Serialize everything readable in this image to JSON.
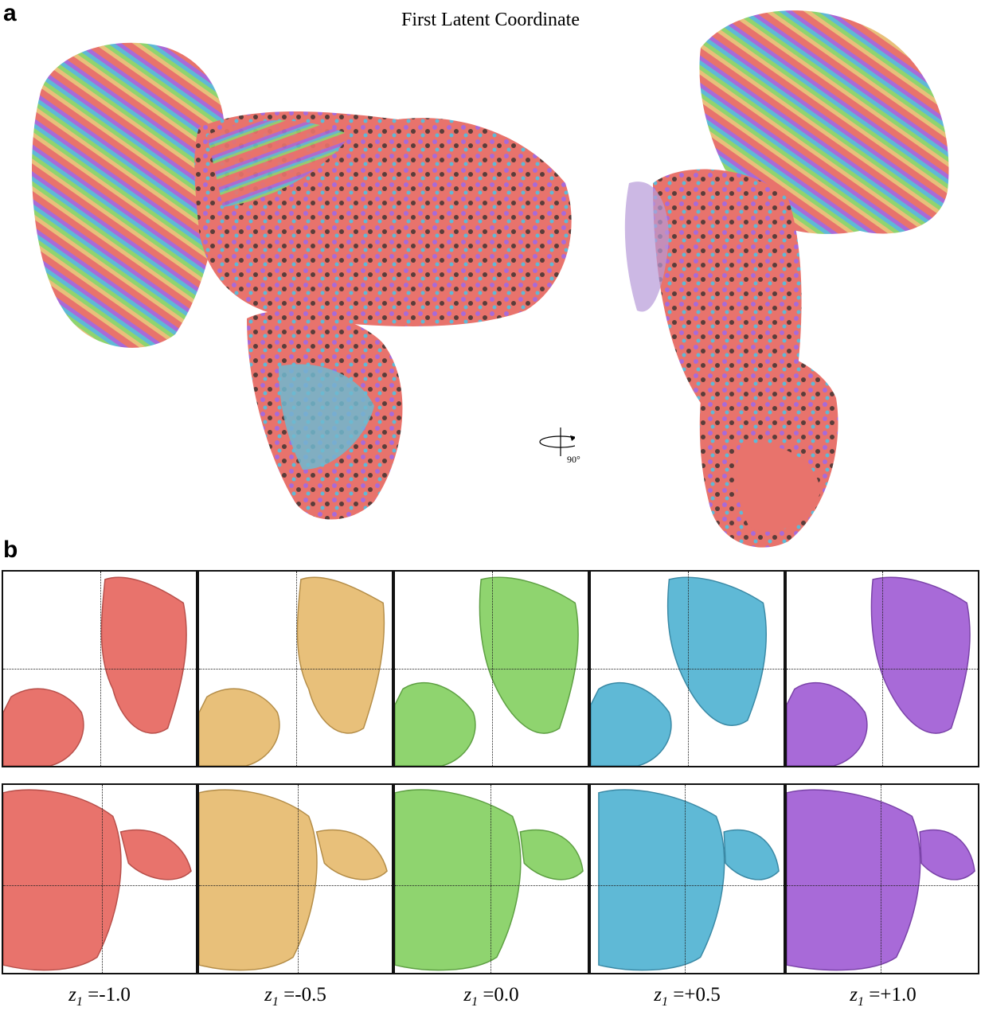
{
  "figure": {
    "panel_a_letter": "a",
    "panel_b_letter": "b",
    "title": "First Latent Coordinate",
    "rotation_label": "90°",
    "rotation_icon": "rotate-around-axis-icon",
    "colors": {
      "z_minus_1_0": "#e8736c",
      "z_minus_0_5": "#e8c07a",
      "z_0_0": "#8fd46f",
      "z_plus_0_5": "#5fb9d6",
      "z_plus_1_0": "#a86ad8"
    },
    "latent_labels": [
      {
        "var": "z",
        "sub": "1",
        "value": "=-1.0"
      },
      {
        "var": "z",
        "sub": "1",
        "value": "=-0.5"
      },
      {
        "var": "z",
        "sub": "1",
        "value": "=0.0"
      },
      {
        "var": "z",
        "sub": "1",
        "value": "=+0.5"
      },
      {
        "var": "z",
        "sub": "1",
        "value": "=+1.0"
      }
    ]
  }
}
